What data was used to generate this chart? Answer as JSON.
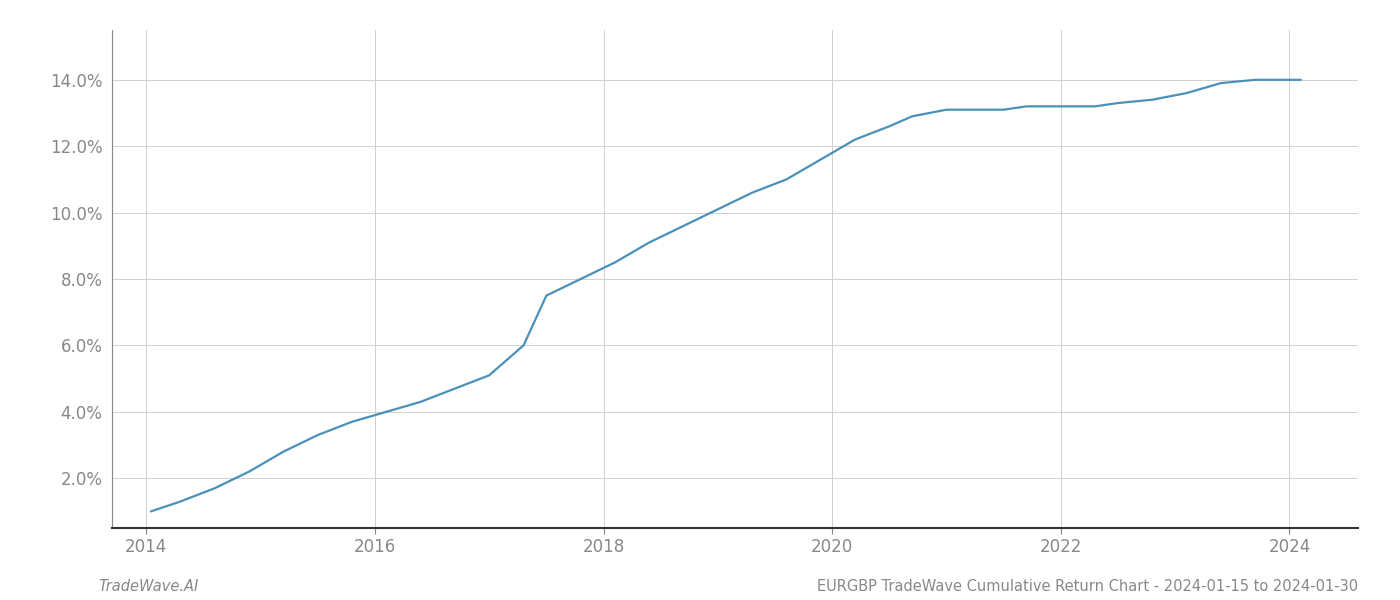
{
  "x_years": [
    2014.04,
    2014.3,
    2014.6,
    2014.9,
    2015.2,
    2015.5,
    2015.8,
    2016.1,
    2016.4,
    2016.7,
    2017.0,
    2017.3,
    2017.5,
    2017.8,
    2018.1,
    2018.4,
    2018.7,
    2019.0,
    2019.3,
    2019.6,
    2019.9,
    2020.2,
    2020.5,
    2020.7,
    2021.0,
    2021.3,
    2021.5,
    2021.7,
    2022.0,
    2022.3,
    2022.5,
    2022.8,
    2023.1,
    2023.4,
    2023.7,
    2024.0,
    2024.1
  ],
  "y_values": [
    0.01,
    0.013,
    0.017,
    0.022,
    0.028,
    0.033,
    0.037,
    0.04,
    0.043,
    0.047,
    0.051,
    0.06,
    0.075,
    0.08,
    0.085,
    0.091,
    0.096,
    0.101,
    0.106,
    0.11,
    0.116,
    0.122,
    0.126,
    0.129,
    0.131,
    0.131,
    0.131,
    0.132,
    0.132,
    0.132,
    0.133,
    0.134,
    0.136,
    0.139,
    0.14,
    0.14,
    0.14
  ],
  "line_color": "#4a90b8",
  "line_width": 1.6,
  "background_color": "#ffffff",
  "grid_color": "#d0d0d0",
  "yticks": [
    0.02,
    0.04,
    0.06,
    0.08,
    0.1,
    0.12,
    0.14
  ],
  "ytick_labels": [
    "2.0%",
    "4.0%",
    "6.0%",
    "8.0%",
    "10.0%",
    "12.0%",
    "14.0%"
  ],
  "xticks": [
    2014,
    2016,
    2018,
    2020,
    2022,
    2024
  ],
  "xtick_labels": [
    "2014",
    "2016",
    "2018",
    "2020",
    "2022",
    "2024"
  ],
  "xlim": [
    2013.7,
    2024.6
  ],
  "ylim": [
    0.005,
    0.155
  ],
  "footer_left": "TradeWave.AI",
  "footer_right": "EURGBP TradeWave Cumulative Return Chart - 2024-01-15 to 2024-01-30",
  "footer_fontsize": 10.5,
  "tick_fontsize": 12,
  "axis_color": "#888888",
  "bottom_spine_color": "#333333"
}
